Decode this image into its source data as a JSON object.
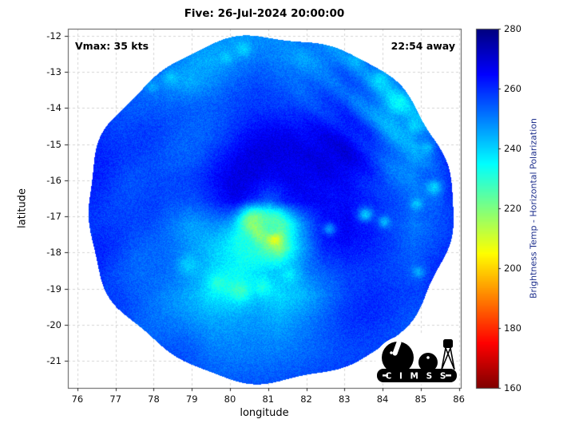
{
  "logo": {
    "text": "C I M S S"
  },
  "colors": {
    "colorbar_label_color": "#1c2e8c",
    "grid_line_color": "#d4d4d4",
    "axis_box_color": "#555555"
  },
  "chart_data": {
    "type": "heatmap",
    "title": "Five: 26-Jul-2024 20:00:00",
    "xlabel": "longitude",
    "ylabel": "latitude",
    "xlim": [
      75.75,
      86.05
    ],
    "ylim": [
      -21.75,
      -11.8
    ],
    "xticks": [
      76,
      77,
      78,
      79,
      80,
      81,
      82,
      83,
      84,
      85,
      86
    ],
    "yticks": [
      -12,
      -13,
      -14,
      -15,
      -16,
      -17,
      -18,
      -19,
      -20,
      -21
    ],
    "grid_on": true,
    "annotations": {
      "vmax": "Vmax: 35 kts",
      "time_away": "22:54 away"
    },
    "colorbar": {
      "label": "Brightness Temp - Horizontal Polarization",
      "min": 160,
      "max": 280,
      "ticks": [
        160,
        180,
        200,
        220,
        240,
        260,
        280
      ],
      "colormap": "jet (low temp = red, high temp = dark blue)"
    },
    "swath": {
      "center_lon": 81.05,
      "center_lat": -16.8,
      "radius_deg": 4.78
    },
    "grid": {
      "lon_range": [
        76,
        86
      ],
      "lat_range": [
        -12,
        -21.8
      ],
      "units": "K",
      "values": [
        [
          257,
          256,
          255,
          254,
          253,
          251,
          249,
          247,
          248,
          250,
          252,
          253,
          254,
          255,
          256,
          257,
          257,
          258
        ],
        [
          258,
          257,
          255,
          253,
          250,
          247,
          245,
          248,
          251,
          249,
          247,
          250,
          252,
          253,
          250,
          253,
          256,
          258
        ],
        [
          258,
          257,
          255,
          251,
          247,
          244,
          248,
          252,
          254,
          252,
          250,
          253,
          255,
          251,
          247,
          250,
          255,
          258
        ],
        [
          259,
          258,
          256,
          253,
          251,
          253,
          255,
          257,
          257,
          255,
          254,
          257,
          259,
          254,
          244,
          247,
          252,
          257
        ],
        [
          260,
          259,
          258,
          256,
          255,
          257,
          259,
          261,
          262,
          261,
          260,
          262,
          264,
          258,
          247,
          243,
          251,
          258
        ],
        [
          260,
          260,
          259,
          258,
          257,
          259,
          262,
          264,
          266,
          265,
          264,
          266,
          267,
          261,
          251,
          246,
          253,
          259
        ],
        [
          261,
          260,
          259,
          258,
          258,
          260,
          263,
          266,
          268,
          267,
          267,
          269,
          268,
          262,
          254,
          249,
          255,
          260
        ],
        [
          261,
          260,
          259,
          257,
          255,
          257,
          261,
          265,
          263,
          259,
          265,
          269,
          270,
          264,
          257,
          251,
          250,
          259
        ],
        [
          261,
          260,
          258,
          255,
          251,
          248,
          252,
          250,
          234,
          222,
          244,
          263,
          268,
          263,
          255,
          248,
          253,
          259
        ],
        [
          261,
          260,
          258,
          253,
          249,
          245,
          243,
          241,
          232,
          214,
          238,
          257,
          263,
          261,
          257,
          253,
          256,
          259
        ],
        [
          261,
          260,
          257,
          252,
          247,
          243,
          239,
          236,
          238,
          241,
          245,
          253,
          259,
          259,
          257,
          255,
          258,
          260
        ],
        [
          260,
          259,
          257,
          252,
          246,
          242,
          238,
          239,
          243,
          239,
          243,
          251,
          257,
          259,
          258,
          257,
          259,
          260
        ],
        [
          260,
          259,
          257,
          254,
          250,
          246,
          244,
          246,
          248,
          246,
          250,
          254,
          258,
          259,
          259,
          258,
          259,
          260
        ],
        [
          259,
          258,
          257,
          255,
          252,
          250,
          248,
          250,
          252,
          252,
          254,
          256,
          258,
          259,
          259,
          259,
          259,
          259
        ],
        [
          258,
          258,
          257,
          256,
          254,
          253,
          252,
          253,
          254,
          255,
          256,
          257,
          258,
          258,
          258,
          258,
          258,
          258
        ],
        [
          258,
          257,
          257,
          256,
          255,
          254,
          254,
          255,
          255,
          256,
          256,
          257,
          257,
          258,
          258,
          258,
          258,
          258
        ]
      ]
    },
    "hotspots": [
      {
        "lon": 80.62,
        "lat": -17.12,
        "temp": 221,
        "sigma": 0.28
      },
      {
        "lon": 80.75,
        "lat": -17.42,
        "temp": 206,
        "sigma": 0.2
      },
      {
        "lon": 81.15,
        "lat": -17.6,
        "temp": 193,
        "sigma": 0.13
      },
      {
        "lon": 81.05,
        "lat": -17.25,
        "temp": 226,
        "sigma": 0.3
      },
      {
        "lon": 80.35,
        "lat": -17.7,
        "temp": 232,
        "sigma": 0.25
      }
    ],
    "speckles": [
      {
        "lon": 80.35,
        "lat": -12.35,
        "temp": 240,
        "sigma": 0.15
      },
      {
        "lon": 79.9,
        "lat": -12.6,
        "temp": 242,
        "sigma": 0.12
      },
      {
        "lon": 78.45,
        "lat": -13.15,
        "temp": 241,
        "sigma": 0.14
      },
      {
        "lon": 77.95,
        "lat": -13.4,
        "temp": 244,
        "sigma": 0.12
      },
      {
        "lon": 83.3,
        "lat": -12.7,
        "temp": 243,
        "sigma": 0.13
      },
      {
        "lon": 83.95,
        "lat": -13.2,
        "temp": 238,
        "sigma": 0.16
      },
      {
        "lon": 84.45,
        "lat": -13.85,
        "temp": 236,
        "sigma": 0.18
      },
      {
        "lon": 84.85,
        "lat": -14.5,
        "temp": 238,
        "sigma": 0.15
      },
      {
        "lon": 85.15,
        "lat": -15.1,
        "temp": 241,
        "sigma": 0.13
      },
      {
        "lon": 85.35,
        "lat": -16.2,
        "temp": 237,
        "sigma": 0.16
      },
      {
        "lon": 84.9,
        "lat": -16.65,
        "temp": 240,
        "sigma": 0.13
      },
      {
        "lon": 83.55,
        "lat": -16.95,
        "temp": 239,
        "sigma": 0.14
      },
      {
        "lon": 84.05,
        "lat": -17.15,
        "temp": 242,
        "sigma": 0.12
      },
      {
        "lon": 79.7,
        "lat": -18.85,
        "temp": 231,
        "sigma": 0.2
      },
      {
        "lon": 80.25,
        "lat": -19.05,
        "temp": 229,
        "sigma": 0.22
      },
      {
        "lon": 80.85,
        "lat": -18.95,
        "temp": 233,
        "sigma": 0.18
      },
      {
        "lon": 81.55,
        "lat": -18.6,
        "temp": 236,
        "sigma": 0.18
      },
      {
        "lon": 78.9,
        "lat": -18.35,
        "temp": 238,
        "sigma": 0.2
      },
      {
        "lon": 84.95,
        "lat": -18.55,
        "temp": 244,
        "sigma": 0.12
      },
      {
        "lon": 82.6,
        "lat": -17.35,
        "temp": 244,
        "sigma": 0.12
      }
    ]
  }
}
